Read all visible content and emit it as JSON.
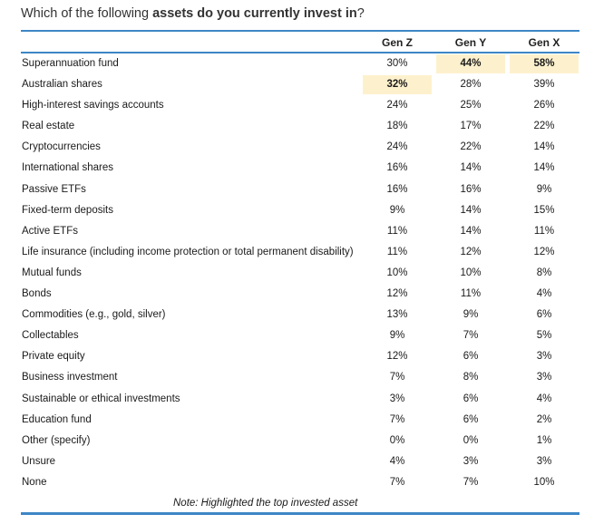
{
  "title": {
    "prefix": "Which of the following ",
    "bold": "assets do you currently invest in",
    "suffix": "?"
  },
  "columns": [
    "Gen Z",
    "Gen Y",
    "Gen X"
  ],
  "highlight_color": "#fdf1cd",
  "accent_color": "#3d86c6",
  "rows": [
    {
      "label": "Superannuation fund",
      "values": [
        "30%",
        "44%",
        "58%"
      ],
      "highlight": [
        false,
        true,
        true
      ]
    },
    {
      "label": "Australian shares",
      "values": [
        "32%",
        "28%",
        "39%"
      ],
      "highlight": [
        true,
        false,
        false
      ]
    },
    {
      "label": "High-interest savings accounts",
      "values": [
        "24%",
        "25%",
        "26%"
      ],
      "highlight": [
        false,
        false,
        false
      ]
    },
    {
      "label": "Real estate",
      "values": [
        "18%",
        "17%",
        "22%"
      ],
      "highlight": [
        false,
        false,
        false
      ]
    },
    {
      "label": "Cryptocurrencies",
      "values": [
        "24%",
        "22%",
        "14%"
      ],
      "highlight": [
        false,
        false,
        false
      ]
    },
    {
      "label": "International shares",
      "values": [
        "16%",
        "14%",
        "14%"
      ],
      "highlight": [
        false,
        false,
        false
      ]
    },
    {
      "label": "Passive ETFs",
      "values": [
        "16%",
        "16%",
        "9%"
      ],
      "highlight": [
        false,
        false,
        false
      ]
    },
    {
      "label": "Fixed-term deposits",
      "values": [
        "9%",
        "14%",
        "15%"
      ],
      "highlight": [
        false,
        false,
        false
      ]
    },
    {
      "label": "Active ETFs",
      "values": [
        "11%",
        "14%",
        "11%"
      ],
      "highlight": [
        false,
        false,
        false
      ]
    },
    {
      "label": "Life insurance (including income protection or total permanent disability)",
      "values": [
        "11%",
        "12%",
        "12%"
      ],
      "highlight": [
        false,
        false,
        false
      ]
    },
    {
      "label": "Mutual funds",
      "values": [
        "10%",
        "10%",
        "8%"
      ],
      "highlight": [
        false,
        false,
        false
      ]
    },
    {
      "label": "Bonds",
      "values": [
        "12%",
        "11%",
        "4%"
      ],
      "highlight": [
        false,
        false,
        false
      ]
    },
    {
      "label": "Commodities (e.g., gold, silver)",
      "values": [
        "13%",
        "9%",
        "6%"
      ],
      "highlight": [
        false,
        false,
        false
      ]
    },
    {
      "label": "Collectables",
      "values": [
        "9%",
        "7%",
        "5%"
      ],
      "highlight": [
        false,
        false,
        false
      ]
    },
    {
      "label": "Private equity",
      "values": [
        "12%",
        "6%",
        "3%"
      ],
      "highlight": [
        false,
        false,
        false
      ]
    },
    {
      "label": "Business investment",
      "values": [
        "7%",
        "8%",
        "3%"
      ],
      "highlight": [
        false,
        false,
        false
      ]
    },
    {
      "label": "Sustainable or ethical investments",
      "values": [
        "3%",
        "6%",
        "4%"
      ],
      "highlight": [
        false,
        false,
        false
      ]
    },
    {
      "label": "Education fund",
      "values": [
        "7%",
        "6%",
        "2%"
      ],
      "highlight": [
        false,
        false,
        false
      ]
    },
    {
      "label": "Other (specify)",
      "values": [
        "0%",
        "0%",
        "1%"
      ],
      "highlight": [
        false,
        false,
        false
      ]
    },
    {
      "label": "Unsure",
      "values": [
        "4%",
        "3%",
        "3%"
      ],
      "highlight": [
        false,
        false,
        false
      ]
    },
    {
      "label": "None",
      "values": [
        "7%",
        "7%",
        "10%"
      ],
      "highlight": [
        false,
        false,
        false
      ]
    }
  ],
  "note": "Note: Highlighted the top invested asset"
}
